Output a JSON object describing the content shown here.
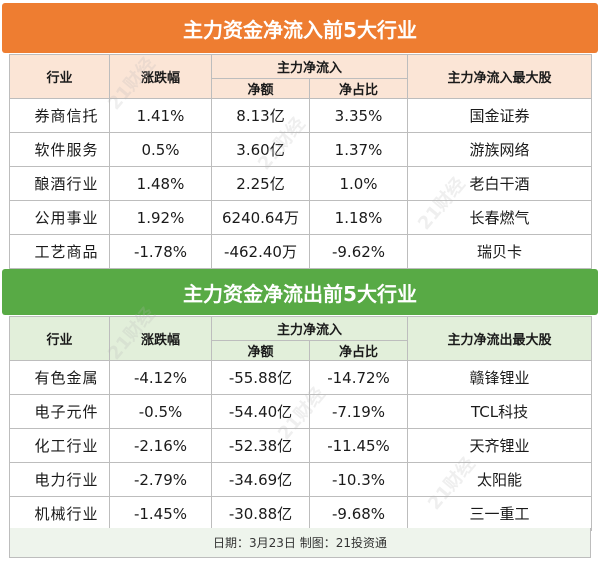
{
  "inflow": {
    "title": "主力资金净流入前5大行业",
    "headers": {
      "industry": "行业",
      "change": "涨跌幅",
      "net_group": "主力净流入",
      "net_amount": "净额",
      "net_ratio": "净占比",
      "top_stock": "主力净流入最大股"
    },
    "rows": [
      {
        "industry": "券商信托",
        "change": "1.41%",
        "amount": "8.13亿",
        "ratio": "3.35%",
        "stock": "国金证券"
      },
      {
        "industry": "软件服务",
        "change": "0.5%",
        "amount": "3.60亿",
        "ratio": "1.37%",
        "stock": "游族网络"
      },
      {
        "industry": "酿酒行业",
        "change": "1.48%",
        "amount": "2.25亿",
        "ratio": "1.0%",
        "stock": "老白干酒"
      },
      {
        "industry": "公用事业",
        "change": "1.92%",
        "amount": "6240.64万",
        "ratio": "1.18%",
        "stock": "长春燃气"
      },
      {
        "industry": "工艺商品",
        "change": "-1.78%",
        "amount": "-462.40万",
        "ratio": "-9.62%",
        "stock": "瑞贝卡"
      }
    ]
  },
  "outflow": {
    "title": "主力资金净流出前5大行业",
    "headers": {
      "industry": "行业",
      "change": "涨跌幅",
      "net_group": "主力净流入",
      "net_amount": "净额",
      "net_ratio": "净占比",
      "top_stock": "主力净流出最大股"
    },
    "rows": [
      {
        "industry": "有色金属",
        "change": "-4.12%",
        "amount": "-55.88亿",
        "ratio": "-14.72%",
        "stock": "赣锋锂业"
      },
      {
        "industry": "电子元件",
        "change": "-0.5%",
        "amount": "-54.40亿",
        "ratio": "-7.19%",
        "stock": "TCL科技"
      },
      {
        "industry": "化工行业",
        "change": "-2.16%",
        "amount": "-52.38亿",
        "ratio": "-11.45%",
        "stock": "天齐锂业"
      },
      {
        "industry": "电力行业",
        "change": "-2.79%",
        "amount": "-34.69亿",
        "ratio": "-10.3%",
        "stock": "太阳能"
      },
      {
        "industry": "机械行业",
        "change": "-1.45%",
        "amount": "-30.88亿",
        "ratio": "-9.68%",
        "stock": "三一重工"
      }
    ]
  },
  "footer": "日期：3月23日  制图：21投资通",
  "watermark": "21财经",
  "colors": {
    "inflow_accent": "#ee7d31",
    "outflow_accent": "#58aa45"
  }
}
